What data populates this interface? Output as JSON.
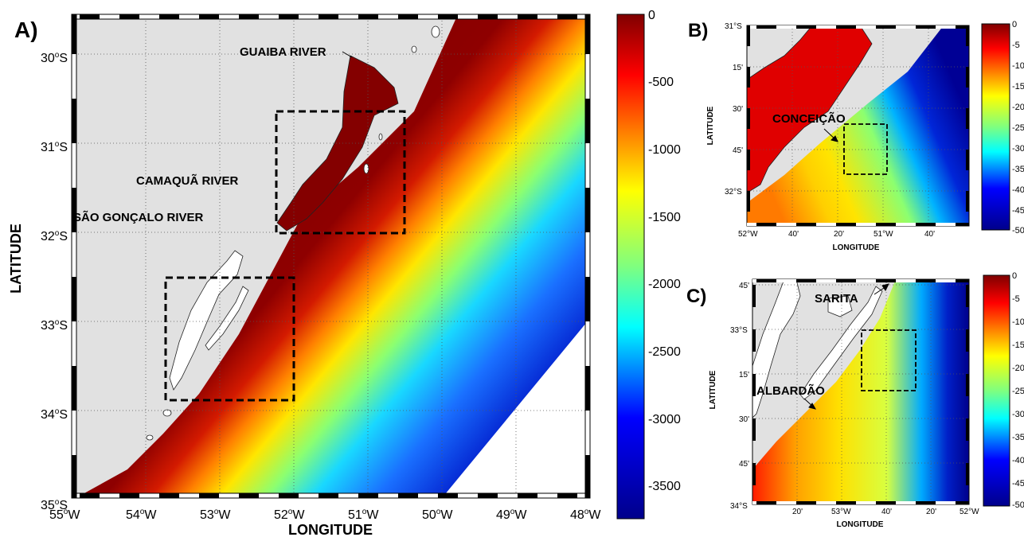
{
  "panels": {
    "a": {
      "letter": "A)",
      "xlabel": "LONGITUDE",
      "ylabel": "LATITUDE",
      "lat_ticks": [
        {
          "deg": "30",
          "hem": "S"
        },
        {
          "deg": "31",
          "hem": "S"
        },
        {
          "deg": "32",
          "hem": "S"
        },
        {
          "deg": "33",
          "hem": "S"
        },
        {
          "deg": "34",
          "hem": "S"
        },
        {
          "deg": "35",
          "hem": "S"
        }
      ],
      "lon_ticks": [
        {
          "deg": "55",
          "hem": "W"
        },
        {
          "deg": "54",
          "hem": "W"
        },
        {
          "deg": "53",
          "hem": "W"
        },
        {
          "deg": "52",
          "hem": "W"
        },
        {
          "deg": "51",
          "hem": "W"
        },
        {
          "deg": "50",
          "hem": "W"
        },
        {
          "deg": "49",
          "hem": "W"
        },
        {
          "deg": "48",
          "hem": "W"
        }
      ],
      "places": [
        "GUAIBA RIVER",
        "CAMAQUÃ RIVER",
        "SÃO GONÇALO RIVER"
      ],
      "colorbar_ticks": [
        "0",
        "-500",
        "-1000",
        "-1500",
        "-2000",
        "-2500",
        "-3000",
        "-3500"
      ]
    },
    "b": {
      "letter": "B)",
      "xlabel": "LONGITUDE",
      "ylabel": "LATITUDE",
      "lat_ticks": [
        "31°S",
        "15'",
        "30'",
        "45'",
        "32°S"
      ],
      "lon_ticks": [
        "52°W",
        "40'",
        "20'",
        "51°W",
        "40'"
      ],
      "places": [
        "CONCEIÇÃO"
      ],
      "colorbar_ticks": [
        "0",
        "-5",
        "-10",
        "-15",
        "-20",
        "-25",
        "-30",
        "-35",
        "-40",
        "-45",
        "-50"
      ]
    },
    "c": {
      "letter": "C)",
      "xlabel": "LONGITUDE",
      "ylabel": "LATITUDE",
      "lat_ticks": [
        "45'",
        "33°S",
        "15'",
        "30'",
        "45'",
        "34°S"
      ],
      "lon_ticks": [
        "20'",
        "53°W",
        "40'",
        "20'",
        "52°W"
      ],
      "places": [
        "SARITA",
        "ALBARDÃO"
      ],
      "colorbar_ticks": [
        "0",
        "-5",
        "-10",
        "-15",
        "-20",
        "-25",
        "-30",
        "-35",
        "-40",
        "-45",
        "-50"
      ]
    }
  },
  "colors": {
    "land": "#e1e1e1",
    "lagoon": "#ffffff",
    "deep_red": "#840000",
    "shelf_red": "#b01006",
    "blue_dark": "#00008b"
  }
}
